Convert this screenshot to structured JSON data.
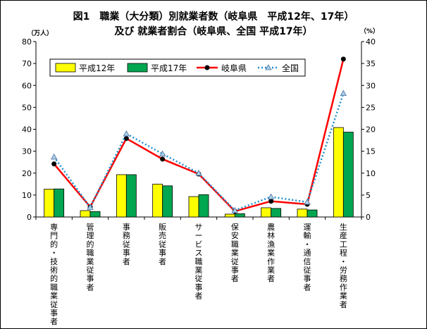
{
  "chart_data": {
    "type": "bar",
    "title_line1": "図1　職業（大分類）別就業者数（岐阜県　平成12年、17年）",
    "title_line2": "及び 就業者割合（岐阜県、全国 平成17年）",
    "y_left_unit": "（万人）",
    "y_right_unit": "（%）",
    "ylim_left": [
      0,
      80
    ],
    "ylim_right": [
      0,
      40
    ],
    "left_ticks": [
      "0",
      "10",
      "20",
      "30",
      "40",
      "50",
      "60",
      "70",
      "80"
    ],
    "right_ticks": [
      "0",
      "5",
      "10",
      "15",
      "20",
      "25",
      "30",
      "35",
      "40"
    ],
    "grid": false,
    "legend_position": "top-left",
    "categories": [
      "専門的・技術的職業従事者",
      "管理的職業従事者",
      "事務従事者",
      "販売従事者",
      "サービス職業従事者",
      "保安職業従事者",
      "農林漁業作業者",
      "運輸・通信従事者",
      "生産工程・労務作業者"
    ],
    "series": [
      {
        "name": "平成12年",
        "type": "bar",
        "axis": "left",
        "color": "#ffff00",
        "values": [
          12.7,
          2.9,
          19.3,
          15.0,
          9.3,
          1.3,
          4.2,
          3.6,
          40.8
        ]
      },
      {
        "name": "平成17年",
        "type": "bar",
        "axis": "left",
        "color": "#00a650",
        "values": [
          12.8,
          2.5,
          19.3,
          14.2,
          10.2,
          1.5,
          3.9,
          3.2,
          38.7
        ]
      },
      {
        "name": "岐阜県",
        "type": "line",
        "axis": "right",
        "color": "#ff0000",
        "values": [
          12.1,
          2.3,
          17.9,
          13.2,
          9.8,
          1.3,
          3.6,
          2.9,
          36.0
        ]
      },
      {
        "name": "全国",
        "type": "line",
        "axis": "right",
        "color": "#1e90d0",
        "values": [
          13.7,
          2.2,
          19.0,
          14.4,
          10.0,
          1.5,
          4.6,
          3.4,
          28.2
        ]
      }
    ]
  }
}
